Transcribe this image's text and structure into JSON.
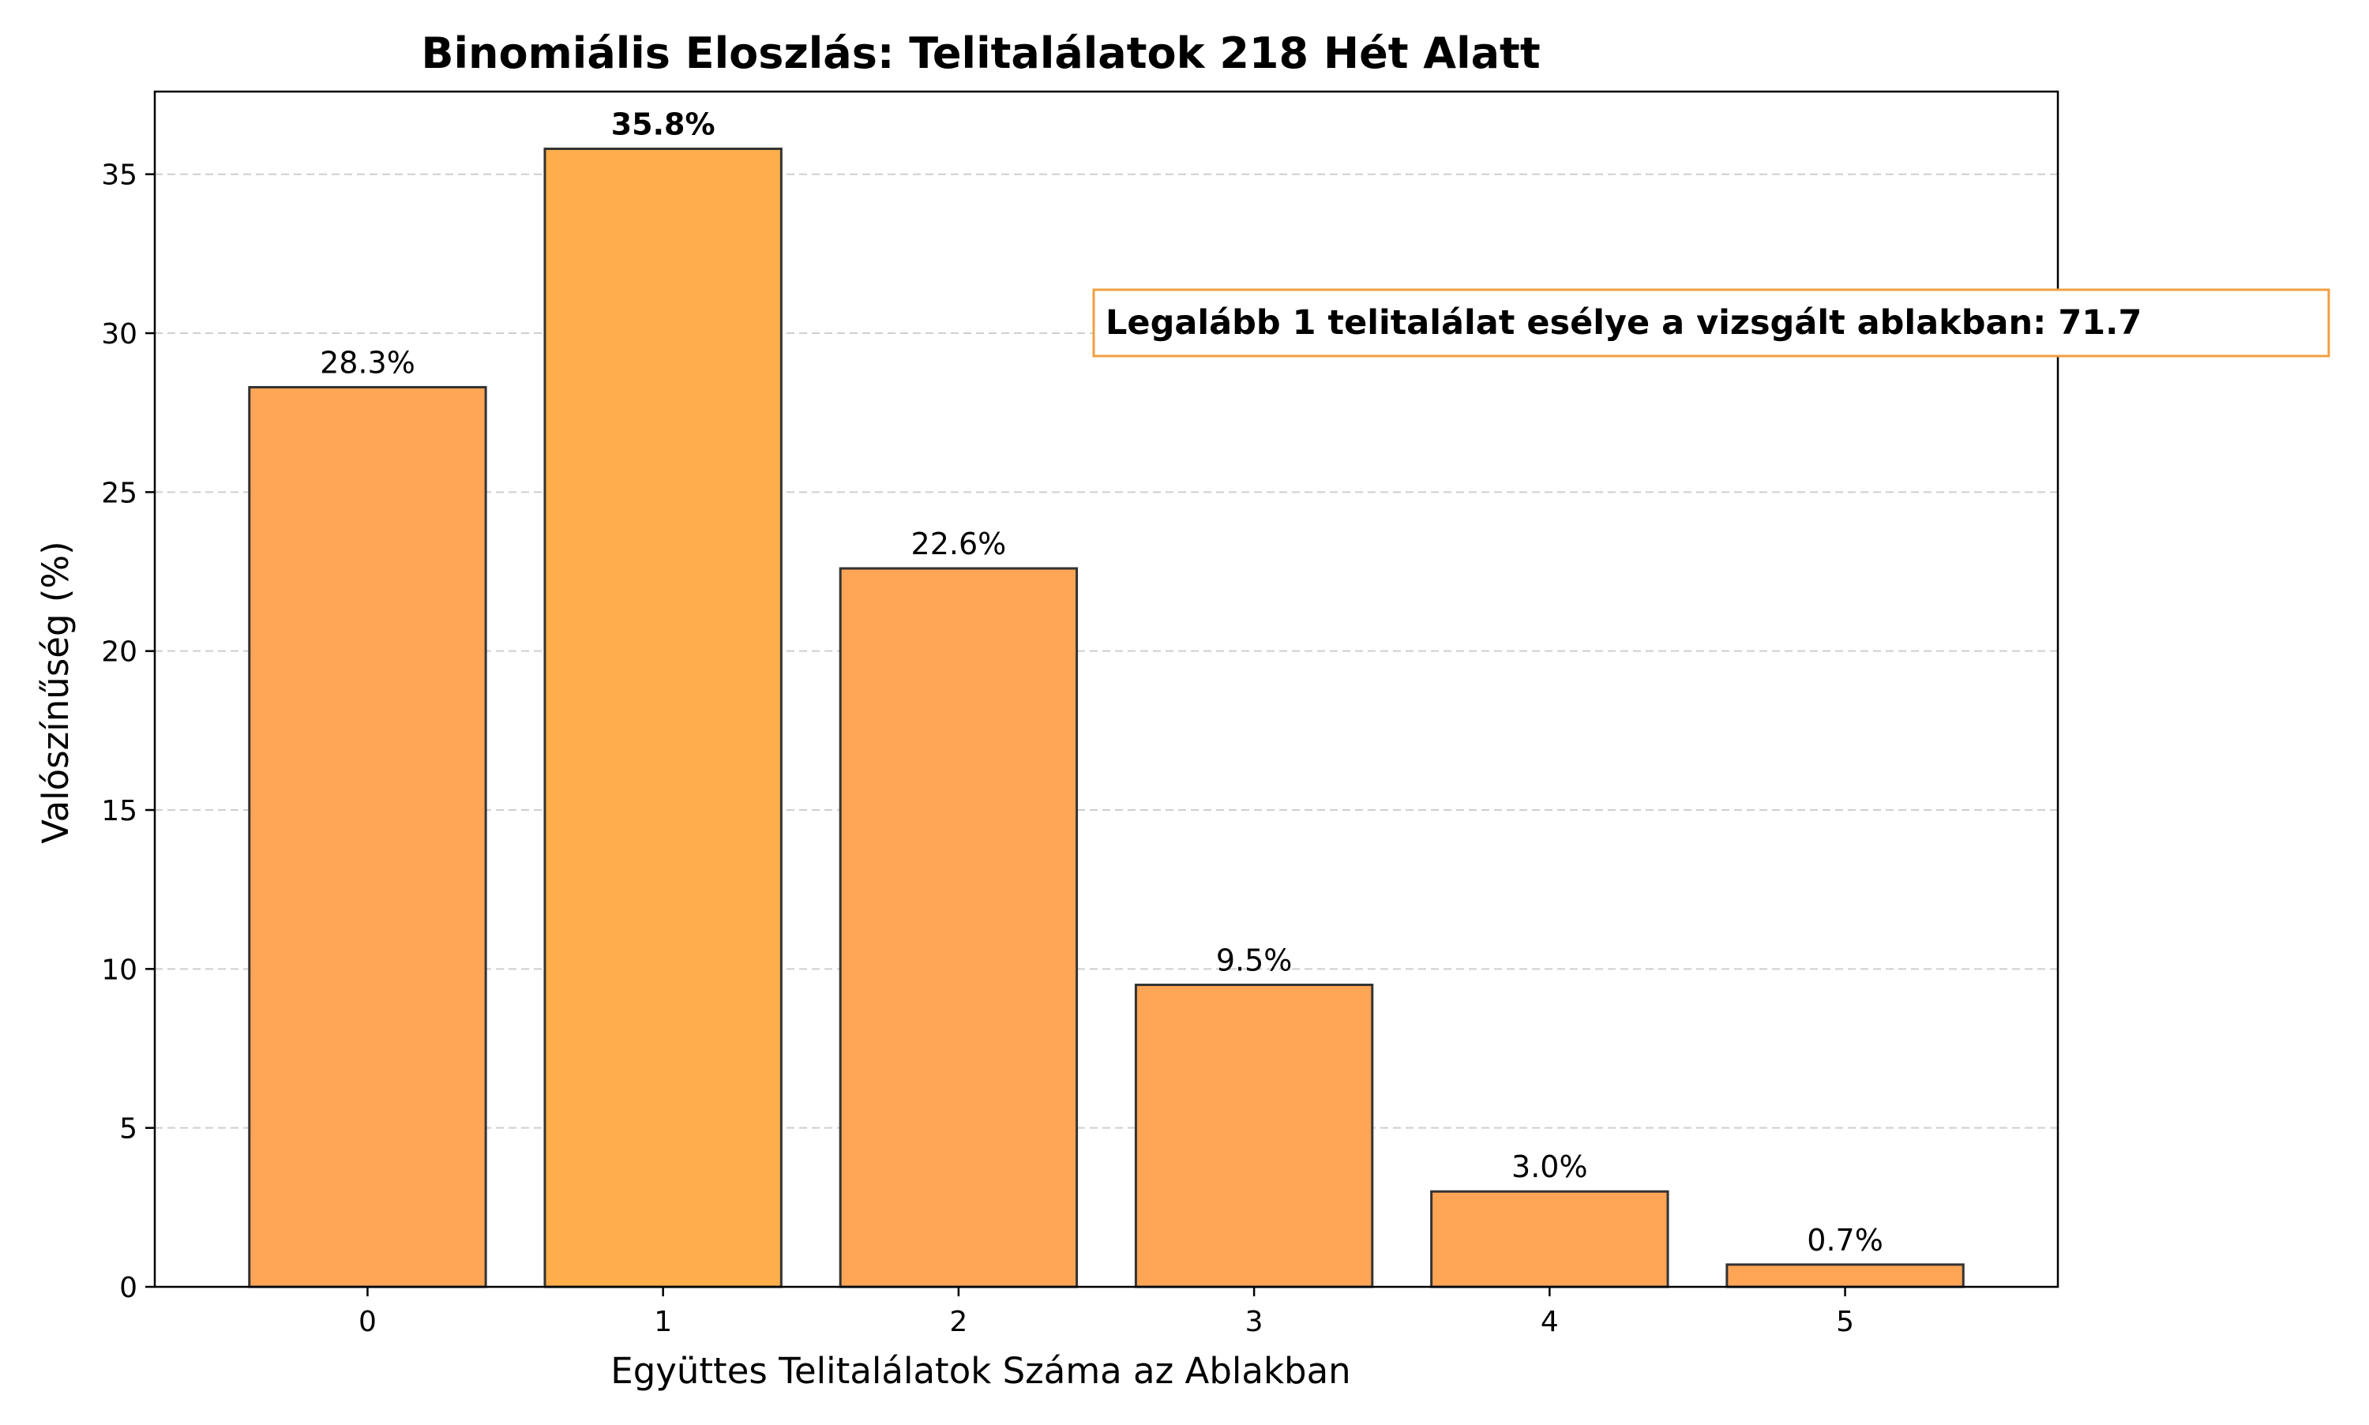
{
  "chart_data": {
    "type": "bar",
    "title": "Binomiális Eloszlás: Telitalálatok 218 Hét Alatt",
    "xlabel": "Együttes Telitalálatok Száma az Ablakban",
    "ylabel": "Valószínűség (%)",
    "categories": [
      "0",
      "1",
      "2",
      "3",
      "4",
      "5"
    ],
    "values": [
      28.3,
      35.8,
      22.6,
      9.5,
      3.0,
      0.7
    ],
    "value_labels": [
      "28.3%",
      "35.8%",
      "22.6%",
      "9.5%",
      "3.0%",
      "0.7%"
    ],
    "highlight_index": 1,
    "ylim": [
      0,
      37.6
    ],
    "yticks": [
      0,
      5,
      10,
      15,
      20,
      25,
      30,
      35
    ],
    "grid": "horizontal dashed",
    "bar_color": "#FFA556",
    "highlight_color": "#FFAE4B",
    "edge_color": "#333333",
    "annotation": "Legalább 1 telitalálat esélye a vizsgált ablakban: 71.7",
    "annotation_border_color": "#F0A040"
  }
}
